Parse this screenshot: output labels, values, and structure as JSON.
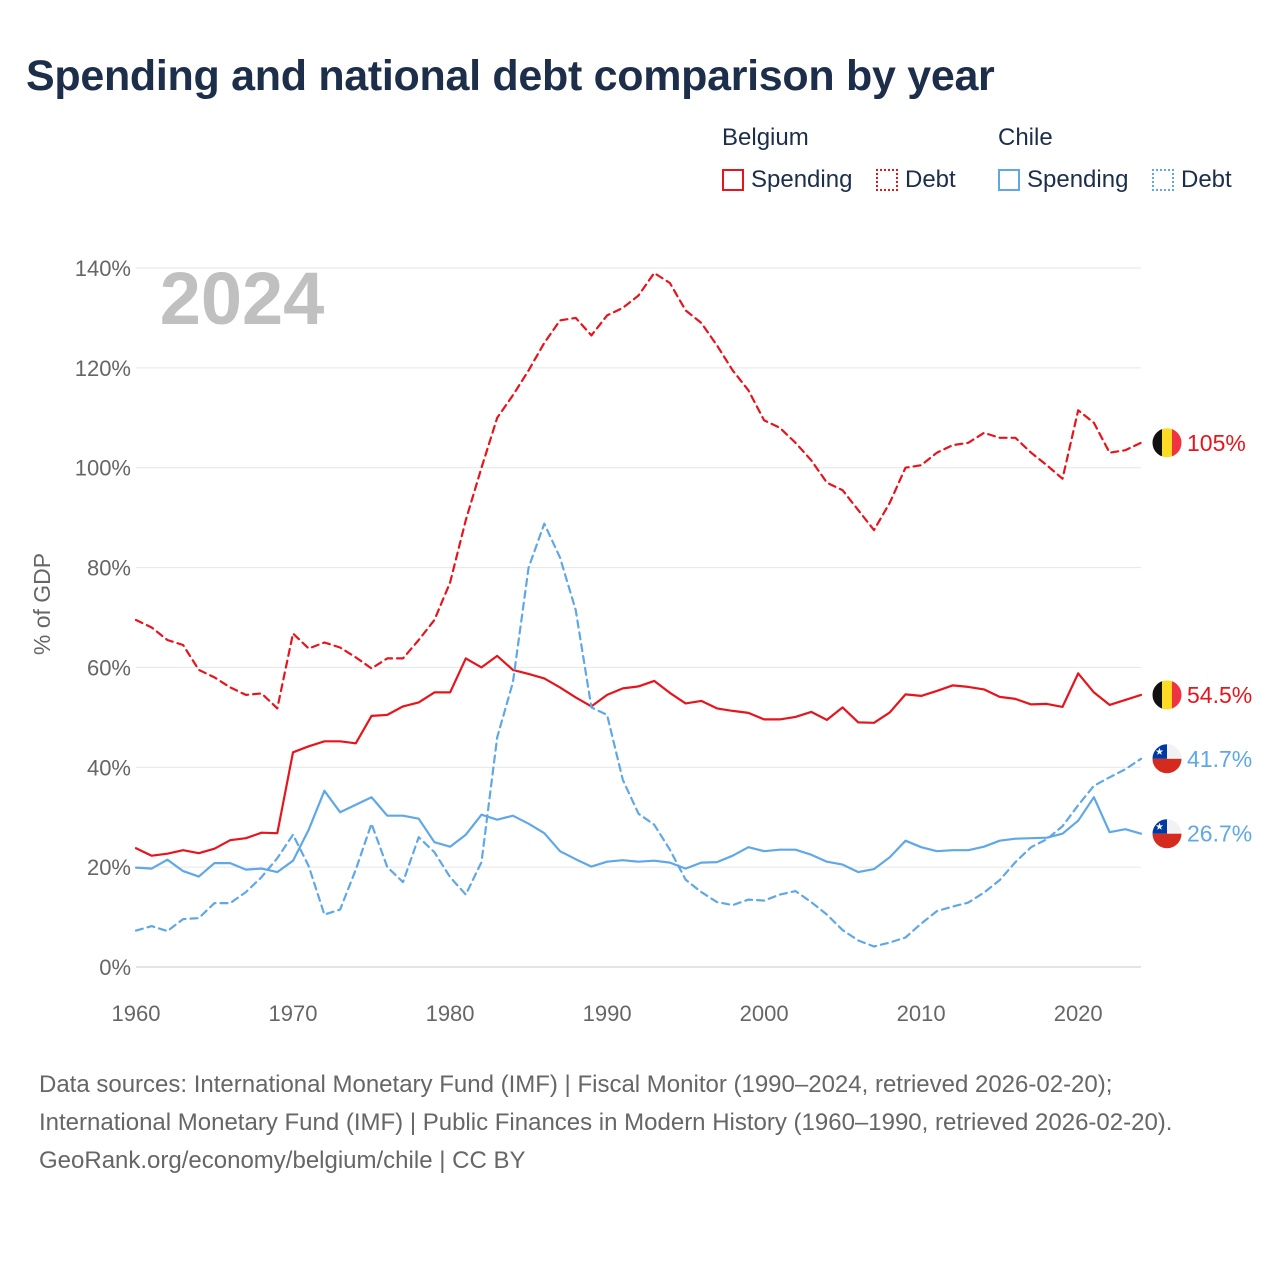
{
  "title": "Spending and national debt comparison by year",
  "legend": {
    "groups": [
      {
        "name": "Belgium",
        "color": "#e8141c",
        "items": [
          "Spending",
          "Debt"
        ]
      },
      {
        "name": "Chile",
        "color": "#5fa8e8",
        "items": [
          "Spending",
          "Debt"
        ]
      }
    ]
  },
  "footer": {
    "sources": "Data sources: International Monetary Fund (IMF) | Fiscal Monitor (1990–2024, retrieved 2026-02-20); International Monetary Fund (IMF) | Public Finances in Modern History (1960–1990, retrieved 2026-02-20).",
    "credit": "GeoRank.org/economy/belgium/chile | CC BY"
  },
  "chart_data": {
    "type": "line",
    "title": "Spending and national debt comparison by year",
    "year_label": "2024",
    "ylabel": "% of GDP",
    "xlabel": "",
    "xlim": [
      1960,
      2024
    ],
    "ylim": [
      0,
      140
    ],
    "y_ticks": [
      0,
      20,
      40,
      60,
      80,
      100,
      120,
      140
    ],
    "y_tick_labels": [
      "0%",
      "20%",
      "40%",
      "60%",
      "80%",
      "100%",
      "120%",
      "140%"
    ],
    "x_ticks": [
      1960,
      1970,
      1980,
      1990,
      2000,
      2010,
      2020
    ],
    "x_tick_labels": [
      "1960",
      "1970",
      "1980",
      "1990",
      "2000",
      "2010",
      "2020"
    ],
    "grid": true,
    "x": [
      1960,
      1961,
      1962,
      1963,
      1964,
      1965,
      1966,
      1967,
      1968,
      1969,
      1970,
      1971,
      1972,
      1973,
      1974,
      1975,
      1976,
      1977,
      1978,
      1979,
      1980,
      1981,
      1982,
      1983,
      1984,
      1985,
      1986,
      1987,
      1988,
      1989,
      1990,
      1991,
      1992,
      1993,
      1994,
      1995,
      1996,
      1997,
      1998,
      1999,
      2000,
      2001,
      2002,
      2003,
      2004,
      2005,
      2006,
      2007,
      2008,
      2009,
      2010,
      2011,
      2012,
      2013,
      2014,
      2015,
      2016,
      2017,
      2018,
      2019,
      2020,
      2021,
      2022,
      2023,
      2024
    ],
    "series": [
      {
        "name": "Belgium Debt",
        "country": "Belgium",
        "measure": "Debt",
        "color": "#e8141c",
        "dash": "dashed",
        "end_label": "105%",
        "flag": "belgium",
        "values": [
          69.5,
          68,
          65.5,
          64.5,
          59.5,
          58,
          56,
          54.5,
          54.8,
          51.8,
          66.8,
          63.8,
          65,
          64,
          62,
          59.8,
          61.8,
          61.8,
          65.5,
          69.5,
          77,
          89.5,
          100,
          110,
          114.5,
          119.5,
          125,
          129.5,
          130,
          126.5,
          130.5,
          132,
          134.5,
          139,
          137,
          131.5,
          129,
          124.5,
          119.5,
          115.5,
          109.5,
          108,
          105,
          101.5,
          97,
          95.5,
          91.5,
          87.5,
          93,
          100,
          100.5,
          103,
          104.5,
          105,
          107,
          106,
          106,
          103,
          100.5,
          97.8,
          111.5,
          109,
          103,
          103.5,
          105
        ]
      },
      {
        "name": "Belgium Spending",
        "country": "Belgium",
        "measure": "Spending",
        "color": "#e8141c",
        "dash": "solid",
        "end_label": "54.5%",
        "flag": "belgium",
        "values": [
          23.8,
          22.3,
          22.7,
          23.4,
          22.8,
          23.7,
          25.4,
          25.8,
          26.9,
          26.8,
          43,
          44.2,
          45.2,
          45.2,
          44.8,
          50.3,
          50.5,
          52.2,
          53,
          55,
          55,
          61.8,
          60,
          62.3,
          59.5,
          58.7,
          57.8,
          56,
          54,
          52.2,
          54.5,
          55.8,
          56.2,
          57.3,
          54.9,
          52.8,
          53.3,
          51.8,
          51.3,
          50.9,
          49.6,
          49.6,
          50.1,
          51.1,
          49.5,
          52,
          49,
          48.9,
          51,
          54.6,
          54.3,
          55.3,
          56.4,
          56.1,
          55.6,
          54.1,
          53.7,
          52.6,
          52.7,
          52.1,
          58.8,
          55,
          52.5,
          53.5,
          54.5
        ]
      },
      {
        "name": "Chile Debt",
        "country": "Chile",
        "measure": "Debt",
        "color": "#5fa8e8",
        "dash": "dashed",
        "end_label": "41.7%",
        "flag": "chile",
        "values": [
          7.3,
          8.2,
          7.2,
          9.6,
          9.8,
          12.8,
          12.8,
          15,
          18,
          21.8,
          26.5,
          20.2,
          10.5,
          11.5,
          19.5,
          28.7,
          20,
          17,
          26,
          23,
          18,
          14.5,
          21,
          46,
          57,
          80,
          88.8,
          82,
          71.5,
          52,
          50.5,
          37.5,
          30.7,
          28.5,
          23.5,
          17.5,
          15,
          13,
          12.4,
          13.5,
          13.3,
          14.5,
          15.2,
          13,
          10.5,
          7.4,
          5.3,
          4.1,
          4.9,
          5.9,
          8.7,
          11.2,
          12.1,
          12.9,
          14.9,
          17.4,
          21,
          24,
          25.6,
          28.2,
          32.4,
          36.3,
          38,
          39.6,
          41.7
        ]
      },
      {
        "name": "Chile Spending",
        "country": "Chile",
        "measure": "Spending",
        "color": "#5fa8e8",
        "dash": "solid",
        "end_label": "26.7%",
        "flag": "chile",
        "values": [
          19.9,
          19.7,
          21.5,
          19.2,
          18.1,
          20.8,
          20.8,
          19.5,
          19.7,
          19,
          21.3,
          27.5,
          35.3,
          31,
          32.5,
          34,
          30.3,
          30.3,
          29.7,
          25,
          24.1,
          26.5,
          30.5,
          29.5,
          30.3,
          28.7,
          26.8,
          23.2,
          21.6,
          20.1,
          21.1,
          21.4,
          21.1,
          21.3,
          20.9,
          19.7,
          20.9,
          21,
          22.3,
          24,
          23.2,
          23.5,
          23.5,
          22.5,
          21.1,
          20.5,
          19,
          19.6,
          22,
          25.3,
          24,
          23.2,
          23.4,
          23.4,
          24.1,
          25.3,
          25.7,
          25.8,
          25.9,
          26.7,
          29.3,
          34,
          27,
          27.6,
          26.7
        ]
      }
    ]
  }
}
